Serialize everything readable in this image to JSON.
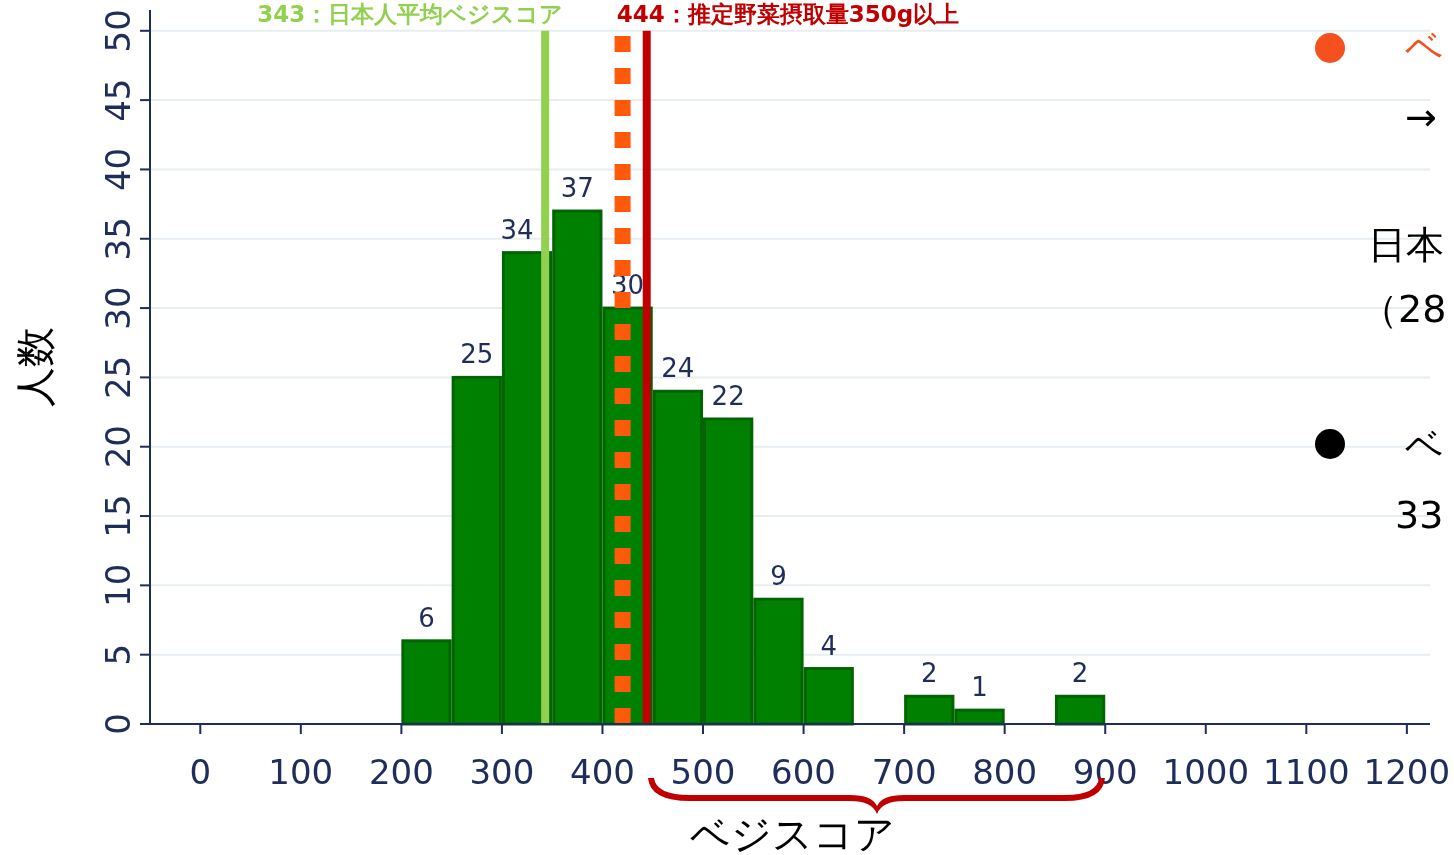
{
  "chart_data": {
    "type": "histogram",
    "xlabel": "ベジスコア",
    "ylabel": "人数",
    "bins": [
      200,
      250,
      300,
      350,
      400,
      450,
      500,
      550,
      600,
      650,
      700,
      750,
      800,
      850,
      900
    ],
    "values": [
      6,
      25,
      34,
      37,
      30,
      24,
      22,
      9,
      4,
      0,
      2,
      1,
      0,
      2
    ],
    "value_labels": [
      "6",
      "25",
      "34",
      "37",
      "30",
      "24",
      "22",
      "9",
      "4",
      null,
      "2",
      "1",
      null,
      "2"
    ],
    "color": "#008000",
    "xlim": [
      -50,
      1223
    ],
    "xticks": [
      0,
      100,
      200,
      300,
      400,
      500,
      600,
      700,
      800,
      900,
      1000,
      1100,
      1200
    ],
    "ylim": [
      0,
      51.5
    ],
    "yticks": [
      0,
      5,
      10,
      15,
      20,
      25,
      30,
      35,
      40,
      45,
      50
    ],
    "grid": "y",
    "ref_lines": [
      {
        "axis": "x",
        "value": 343,
        "label": "343：日本人平均ベジスコア",
        "color": "#92d050",
        "line_style": "solid"
      },
      {
        "axis": "x",
        "value": 420,
        "color": "#ff5a0a",
        "line_style": "dotted"
      },
      {
        "axis": "x",
        "value": 444,
        "label": "444：推定野菜摂取量350g以上",
        "color": "#c00000",
        "line_style": "solid"
      }
    ],
    "annotations": [
      "ベ",
      "→",
      "日本",
      "（28",
      "ベ",
      "33"
    ]
  }
}
